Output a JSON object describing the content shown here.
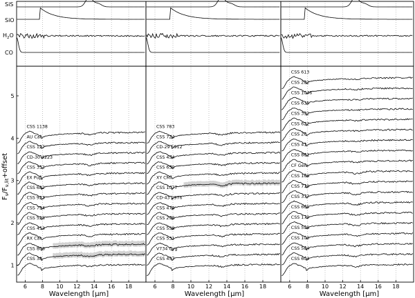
{
  "chart_data": {
    "type": "line",
    "xlabel": "Wavelength [μm]",
    "ylabel": "Fν/Fν,lit+offset",
    "x_ticks": [
      6,
      8,
      10,
      12,
      14,
      16,
      18
    ],
    "y_ticks": [
      1,
      2,
      3,
      4,
      5
    ],
    "xlim": [
      5.0,
      20.0
    ],
    "ylim": [
      0.6,
      5.7
    ],
    "grid": "dotted vertical at each 2 μm",
    "line_color": "#000000",
    "spread_color": "#c8c8c8",
    "template_panel": {
      "rows": [
        {
          "molecule": "SiS",
          "feature": "absorption centred near 13.5 μm"
        },
        {
          "molecule": "SiO",
          "feature": "broad absorption starting near 8 μm"
        },
        {
          "molecule": "H2O",
          "feature": "structure between 6 and 8 μm"
        },
        {
          "molecule": "CO",
          "feature": "absorption near 5 μm"
        }
      ]
    },
    "columns": [
      {
        "stars": [
          "CSS 38",
          "CSS 806",
          "RX Car",
          "CSS 453",
          "CSS 528",
          "CSS 794",
          "CSS 923",
          "CSS 682",
          "EX Pup",
          "CSS 352",
          "CD-30 4223",
          "CSS 127",
          "AU Car",
          "CSS 1138"
        ],
        "base": 1.0,
        "step": 0.24,
        "shaded": [
          "CSS 806",
          "RX Car"
        ]
      },
      {
        "stars": [
          "CSS 457",
          "V734 Cyg",
          "CSS 531",
          "CSS 558",
          "CSS 298",
          "CSS 478",
          "CD-43 2976",
          "CSS 1077",
          "XY CMi",
          "CSS 650",
          "CSS 454",
          "CD-29 5912",
          "CSS 724",
          "CSS 783"
        ],
        "base": 1.0,
        "step": 0.24,
        "shaded": [
          "XY CMi"
        ]
      },
      {
        "stars": [
          "CSS 604",
          "CSS 584",
          "CSS 100",
          "CSS 598",
          "CSS 179",
          "CSS 665",
          "CSS 377",
          "CSS 719",
          "CSS 166",
          "CF Gem",
          "CSS 881",
          "CSS 41",
          "CSS 26",
          "CSS 622",
          "CSS 392",
          "CSS 635",
          "CSS 1046",
          "CSS 282",
          "CSS 613"
        ],
        "base": 1.0,
        "step": 0.245,
        "shaded": []
      }
    ]
  },
  "labels": {
    "xlabel": "Wavelength [μm]",
    "ylabel_main": "F",
    "ylabel_sub1": "ν",
    "ylabel_mid": "/F",
    "ylabel_sub2": "ν,lit",
    "ylabel_tail": "+offset",
    "molecules": {
      "SiS": "SiS",
      "SiO": "SiO",
      "H2O_pre": "H",
      "H2O_sub": "2",
      "H2O_post": "O",
      "CO": "CO"
    }
  }
}
